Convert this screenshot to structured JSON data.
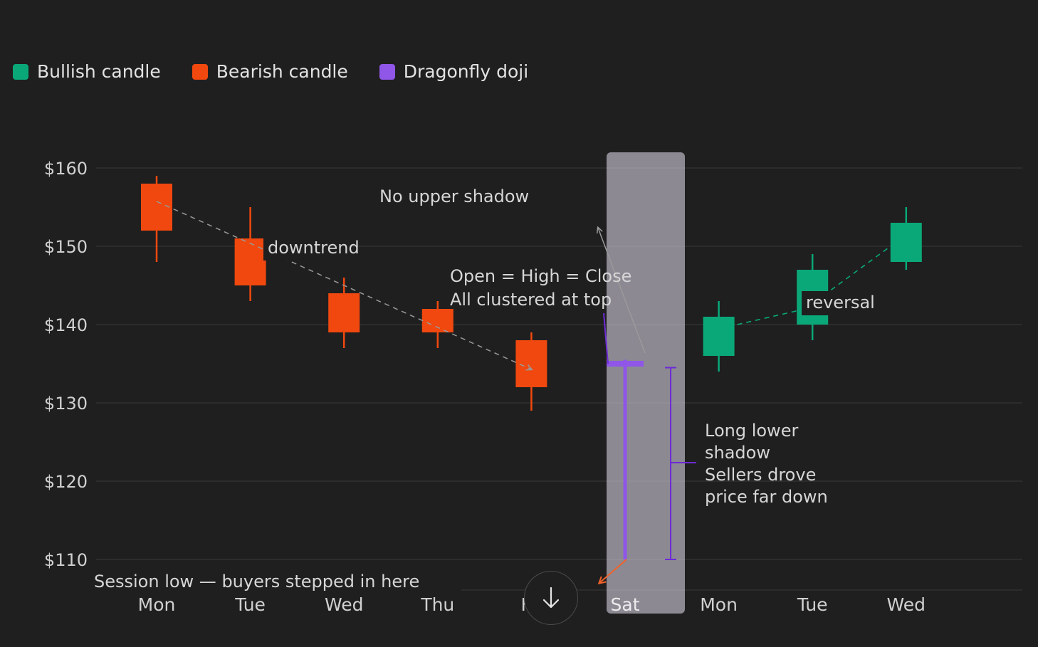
{
  "legend": [
    {
      "label": "Bullish candle",
      "color": "#0aa878"
    },
    {
      "label": "Bearish candle",
      "color": "#f0480f"
    },
    {
      "label": "Dragonfly doji",
      "color": "#8f56e8"
    }
  ],
  "chart_data": {
    "type": "candlestick",
    "ylim": [
      110,
      160
    ],
    "yticks": [
      {
        "value": 160,
        "label": "$160"
      },
      {
        "value": 150,
        "label": "$150"
      },
      {
        "value": 140,
        "label": "$140"
      },
      {
        "value": 130,
        "label": "$130"
      },
      {
        "value": 120,
        "label": "$120"
      },
      {
        "value": 110,
        "label": "$110"
      }
    ],
    "candles": [
      {
        "day": "Mon",
        "open": 158,
        "high": 159,
        "low": 148,
        "close": 152,
        "kind": "bearish"
      },
      {
        "day": "Tue",
        "open": 151,
        "high": 155,
        "low": 143,
        "close": 145,
        "kind": "bearish"
      },
      {
        "day": "Wed",
        "open": 144,
        "high": 146,
        "low": 137,
        "close": 139,
        "kind": "bearish"
      },
      {
        "day": "Thu",
        "open": 142,
        "high": 143,
        "low": 137,
        "close": 139,
        "kind": "bearish"
      },
      {
        "day": "Fri",
        "open": 138,
        "high": 139,
        "low": 129,
        "close": 132,
        "kind": "bearish"
      },
      {
        "day": "Sat",
        "open": 135,
        "high": 135.5,
        "low": 110,
        "close": 135,
        "kind": "doji"
      },
      {
        "day": "Mon",
        "open": 136,
        "high": 143,
        "low": 134,
        "close": 141,
        "kind": "bullish"
      },
      {
        "day": "Tue",
        "open": 140,
        "high": 149,
        "low": 138,
        "close": 147,
        "kind": "bullish"
      },
      {
        "day": "Wed",
        "open": 148,
        "high": 155,
        "low": 147,
        "close": 153,
        "kind": "bullish"
      }
    ],
    "annotations": {
      "downtrend": "downtrend",
      "reversal": "reversal",
      "no_upper_shadow": "No upper shadow",
      "ohc_line1": "Open = High = Close",
      "ohc_line2": "All clustered at top",
      "lower_shadow_lines": [
        "Long lower",
        "shadow",
        "Sellers drove",
        "price far down"
      ],
      "session_low": "Session low — buyers stepped in here"
    }
  },
  "scroll_button": {
    "icon": "arrow-down-icon"
  }
}
